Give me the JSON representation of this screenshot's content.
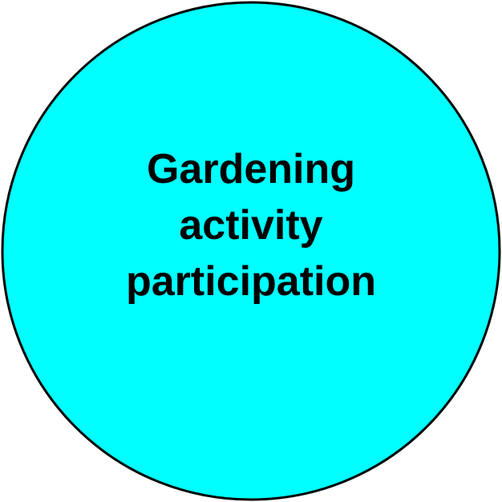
{
  "node": {
    "label_lines": [
      "Gardening",
      "activity",
      "participation"
    ],
    "fill_color": "#00ffff",
    "stroke_color": "#000000"
  }
}
